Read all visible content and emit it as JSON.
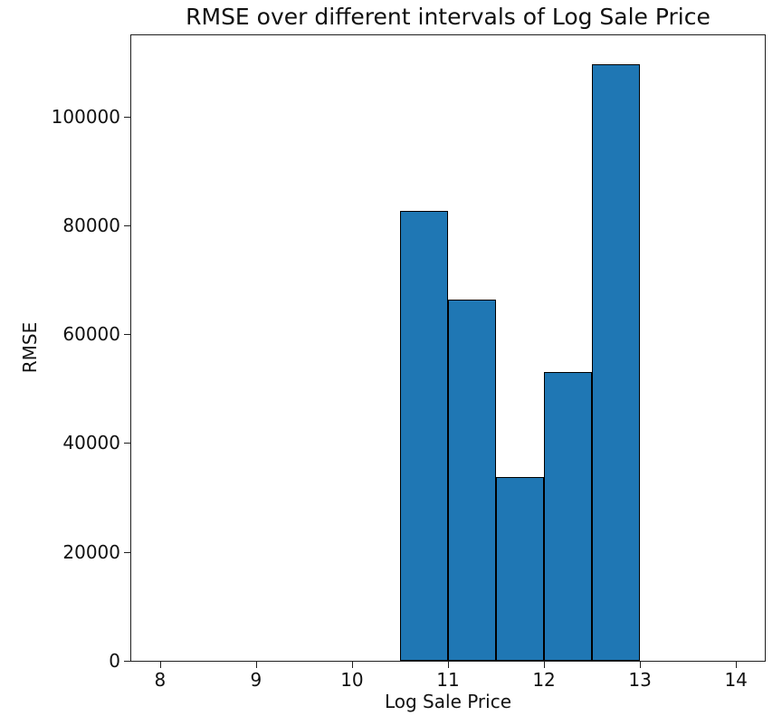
{
  "chart_data": {
    "type": "bar",
    "title": "RMSE over different intervals of Log Sale Price",
    "xlabel": "Log Sale Price",
    "ylabel": "RMSE",
    "xlim": [
      7.7,
      14.3
    ],
    "ylim": [
      0,
      114900
    ],
    "xticks": [
      8,
      9,
      10,
      11,
      12,
      13,
      14
    ],
    "yticks": [
      0,
      20000,
      40000,
      60000,
      80000,
      100000
    ],
    "grid": false,
    "legend": null,
    "bar_fill_color": "#1f77b4",
    "bar_edge_color": "#000000",
    "background_color": "#ffffff",
    "bars": [
      {
        "interval_start": 10.5,
        "interval_end": 11.0,
        "rmse": 82700
      },
      {
        "interval_start": 11.0,
        "interval_end": 11.5,
        "rmse": 66300
      },
      {
        "interval_start": 11.5,
        "interval_end": 12.0,
        "rmse": 33800
      },
      {
        "interval_start": 12.0,
        "interval_end": 12.5,
        "rmse": 53000
      },
      {
        "interval_start": 12.5,
        "interval_end": 13.0,
        "rmse": 109600
      }
    ]
  }
}
